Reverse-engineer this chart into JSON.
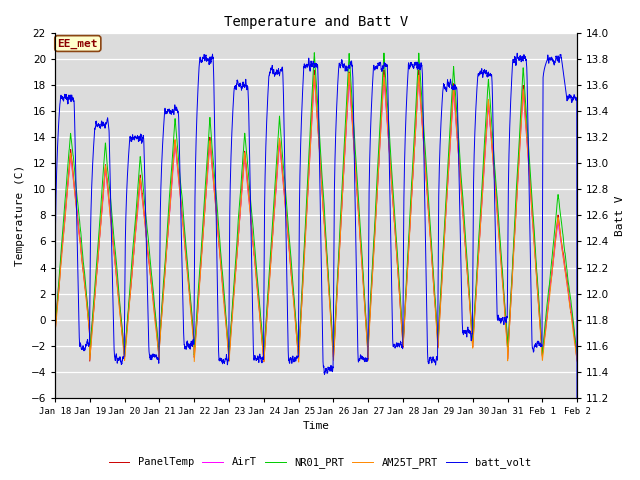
{
  "title": "Temperature and Batt V",
  "xlabel": "Time",
  "ylabel_left": "Temperature (C)",
  "ylabel_right": "Batt V",
  "ylim_left": [
    -6,
    22
  ],
  "ylim_right": [
    11.2,
    14.0
  ],
  "yticks_left": [
    -6,
    -4,
    -2,
    0,
    2,
    4,
    6,
    8,
    10,
    12,
    14,
    16,
    18,
    20,
    22
  ],
  "yticks_right": [
    11.2,
    11.4,
    11.6,
    11.8,
    12.0,
    12.2,
    12.4,
    12.6,
    12.8,
    13.0,
    13.2,
    13.4,
    13.6,
    13.8,
    14.0
  ],
  "xtick_labels": [
    "Jan 18",
    "Jan 19",
    "Jan 20",
    "Jan 21",
    "Jan 22",
    "Jan 23",
    "Jan 24",
    "Jan 25",
    "Jan 26",
    "Jan 27",
    "Jan 28",
    "Jan 29",
    "Jan 30",
    "Jan 31",
    "Feb 1",
    "Feb 2"
  ],
  "colors": {
    "PanelTemp": "#cc0000",
    "AirT": "#ff00ff",
    "NR01_PRT": "#00cc00",
    "AM25T_PRT": "#ff8800",
    "batt_volt": "#0000ee"
  },
  "annotation_text": "EE_met",
  "annotation_fg": "#8B0000",
  "annotation_bg": "#ffffcc",
  "annotation_edge": "#8B4513",
  "plot_bg": "#dcdcdc",
  "fig_bg": "#ffffff",
  "grid_color": "#ffffff",
  "num_days": 15,
  "n_points": 4320,
  "seed": 123
}
